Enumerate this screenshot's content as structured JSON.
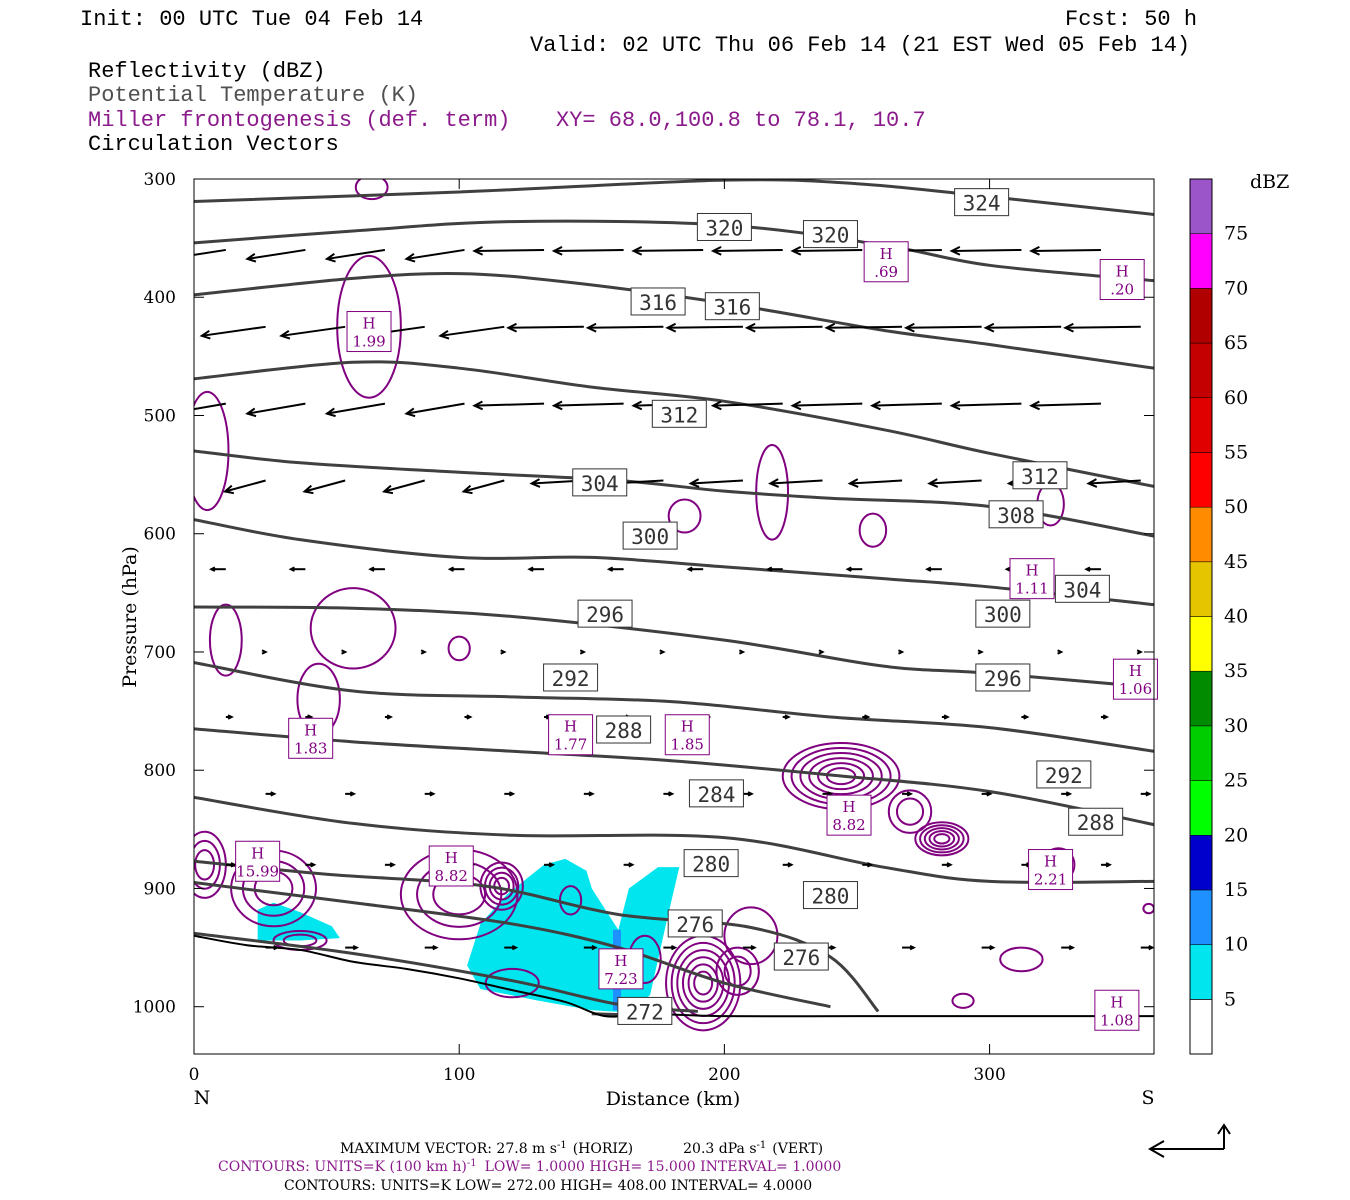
{
  "header": {
    "init": "Init: 00 UTC Tue 04 Feb 14",
    "fcst": "Fcst:   50 h",
    "valid": "Valid: 02 UTC Thu 06 Feb 14 (21 EST Wed 05 Feb 14)"
  },
  "legend_lines": [
    {
      "text": "Reflectivity (dBZ)",
      "color": "#000000"
    },
    {
      "text": "Potential Temperature (K)",
      "color": "#505050"
    },
    {
      "text": "Miller frontogenesis (def. term)",
      "color": "#8b1a8b"
    },
    {
      "text": "Circulation Vectors",
      "color": "#000000"
    }
  ],
  "xy_label": "XY=  68.0,100.8 to  78.1, 10.7",
  "colors": {
    "theta": "#404040",
    "fronto": "#800080",
    "refl_5": "#00e5ee",
    "refl_10": "#1e90ff",
    "vector": "#000000"
  },
  "footer": {
    "max_prefix": "MAXIMUM VECTOR:  27.8 m s",
    "max_horiz": "(HORIZ)",
    "max_vert": "20.3 dPa s",
    "max_vert_suffix": "(VERT)",
    "line2": "CONTOURS:  UNITS=K (100 km h)",
    "line2b": "LOW=   1.0000       HIGH=  15.000       INTERVAL=    1.0000",
    "line3": "CONTOURS:  UNITS=K  LOW=   272.00       HIGH=   408.00       INTERVAL=     4.0000"
  },
  "chart_data": {
    "type": "cross-section",
    "xlabel": "Distance (km)",
    "ylabel": "Pressure (hPa)",
    "xlim": [
      0,
      362
    ],
    "ylim": [
      1040,
      300
    ],
    "x_ticks": [
      0,
      100,
      200,
      300
    ],
    "y_ticks": [
      300,
      400,
      500,
      600,
      700,
      800,
      900,
      1000
    ],
    "left_label": "N",
    "right_label": "S",
    "colorbar": {
      "title": "dBZ",
      "levels": [
        5,
        10,
        15,
        20,
        25,
        30,
        35,
        40,
        45,
        50,
        55,
        60,
        65,
        70,
        75
      ],
      "colors": [
        "#00e5ee",
        "#1e90ff",
        "#0000cd",
        "#00ff00",
        "#00cd00",
        "#008b00",
        "#ffff00",
        "#e5c400",
        "#ff8c00",
        "#ff0000",
        "#e00000",
        "#c40000",
        "#b00000",
        "#ff00ff",
        "#9b55c8"
      ]
    },
    "terrain": [
      [
        0,
        940
      ],
      [
        20,
        948
      ],
      [
        40,
        952
      ],
      [
        60,
        962
      ],
      [
        80,
        968
      ],
      [
        100,
        976
      ],
      [
        120,
        986
      ],
      [
        140,
        996
      ],
      [
        155,
        1008
      ],
      [
        170,
        1006
      ],
      [
        200,
        1008
      ],
      [
        250,
        1008
      ],
      [
        300,
        1008
      ],
      [
        362,
        1008
      ]
    ],
    "theta_contours": [
      {
        "value": 324,
        "labels": [
          [
            297,
            320
          ]
        ],
        "points": [
          [
            0,
            319
          ],
          [
            100,
            311
          ],
          [
            200,
            301
          ],
          [
            250,
            304
          ],
          [
            300,
            315
          ],
          [
            362,
            330
          ]
        ]
      },
      {
        "value": 320,
        "labels": [
          [
            200,
            341
          ],
          [
            240,
            347
          ]
        ],
        "points": [
          [
            0,
            354
          ],
          [
            60,
            344
          ],
          [
            120,
            336
          ],
          [
            200,
            339
          ],
          [
            260,
            356
          ],
          [
            300,
            373
          ],
          [
            362,
            386
          ]
        ]
      },
      {
        "value": 316,
        "labels": [
          [
            175,
            404
          ],
          [
            203,
            408
          ]
        ],
        "points": [
          [
            0,
            398
          ],
          [
            60,
            384
          ],
          [
            100,
            380
          ],
          [
            140,
            387
          ],
          [
            200,
            405
          ],
          [
            260,
            428
          ],
          [
            300,
            440
          ],
          [
            362,
            460
          ]
        ]
      },
      {
        "value": 312,
        "labels": [
          [
            183,
            499
          ],
          [
            319,
            551
          ]
        ],
        "points": [
          [
            0,
            469
          ],
          [
            60,
            455
          ],
          [
            100,
            460
          ],
          [
            150,
            476
          ],
          [
            200,
            488
          ],
          [
            260,
            512
          ],
          [
            300,
            532
          ],
          [
            362,
            560
          ]
        ]
      },
      {
        "value": 308,
        "labels": [
          [
            310,
            584
          ]
        ],
        "points": [
          [
            0,
            530
          ],
          [
            40,
            540
          ],
          [
            100,
            548
          ],
          [
            160,
            555
          ],
          [
            200,
            564
          ],
          [
            240,
            570
          ],
          [
            300,
            577
          ],
          [
            362,
            602
          ]
        ]
      },
      {
        "value": 304,
        "labels": [
          [
            153,
            557
          ],
          [
            335,
            647
          ]
        ],
        "points": [
          [
            0,
            588
          ],
          [
            40,
            605
          ],
          [
            100,
            620
          ],
          [
            150,
            620
          ],
          [
            200,
            628
          ],
          [
            260,
            638
          ],
          [
            300,
            645
          ],
          [
            362,
            660
          ]
        ]
      },
      {
        "value": 300,
        "labels": [
          [
            172,
            602
          ],
          [
            305,
            668
          ]
        ],
        "points": [
          [
            0,
            662
          ],
          [
            60,
            663
          ],
          [
            120,
            670
          ],
          [
            200,
            690
          ],
          [
            260,
            712
          ],
          [
            300,
            718
          ],
          [
            362,
            730
          ]
        ]
      },
      {
        "value": 296,
        "labels": [
          [
            155,
            668
          ],
          [
            305,
            722
          ]
        ],
        "points": [
          [
            0,
            709
          ],
          [
            60,
            733
          ],
          [
            120,
            738
          ],
          [
            180,
            742
          ],
          [
            240,
            755
          ],
          [
            300,
            764
          ],
          [
            362,
            784
          ]
        ]
      },
      {
        "value": 292,
        "labels": [
          [
            142,
            722
          ],
          [
            328,
            804
          ]
        ],
        "points": [
          [
            0,
            765
          ],
          [
            60,
            776
          ],
          [
            120,
            784
          ],
          [
            180,
            792
          ],
          [
            240,
            804
          ],
          [
            300,
            818
          ],
          [
            362,
            846
          ]
        ]
      },
      {
        "value": 288,
        "labels": [
          [
            162,
            766
          ],
          [
            340,
            844
          ]
        ],
        "points": [
          [
            0,
            823
          ],
          [
            60,
            845
          ],
          [
            120,
            855
          ],
          [
            200,
            857
          ],
          [
            260,
            882
          ],
          [
            300,
            894
          ],
          [
            362,
            894
          ]
        ]
      },
      {
        "value": 284,
        "labels": [
          [
            197,
            820
          ]
        ],
        "points": [
          [
            0,
            877
          ],
          [
            50,
            888
          ],
          [
            110,
            898
          ],
          [
            160,
            922
          ],
          [
            210,
            933
          ],
          [
            240,
            958
          ],
          [
            258,
            1004
          ]
        ]
      },
      {
        "value": 280,
        "labels": [
          [
            195,
            879
          ],
          [
            240,
            906
          ]
        ],
        "points": [
          [
            0,
            895
          ],
          [
            60,
            912
          ],
          [
            120,
            930
          ],
          [
            160,
            950
          ],
          [
            200,
            980
          ],
          [
            240,
            1000
          ]
        ]
      },
      {
        "value": 276,
        "labels": [
          [
            189,
            930
          ],
          [
            229,
            958
          ]
        ],
        "points": [
          [
            0,
            938
          ],
          [
            60,
            955
          ],
          [
            120,
            978
          ],
          [
            160,
            998
          ],
          [
            190,
            1004
          ]
        ]
      },
      {
        "value": 272,
        "labels": [
          [
            170,
            1004
          ]
        ],
        "points": [
          [
            150,
            1006
          ],
          [
            180,
            1008
          ]
        ]
      }
    ],
    "fronto_maxima": [
      {
        "x": 66,
        "p": 429,
        "value": "1.99"
      },
      {
        "x": 261,
        "p": 370,
        "value": ".69"
      },
      {
        "x": 350,
        "p": 385,
        "value": ".20"
      },
      {
        "x": 316,
        "p": 638,
        "value": "1.11"
      },
      {
        "x": 355,
        "p": 723,
        "value": "1.06"
      },
      {
        "x": 44,
        "p": 773,
        "value": "1.83"
      },
      {
        "x": 142,
        "p": 770,
        "value": "1.77"
      },
      {
        "x": 186,
        "p": 770,
        "value": "1.85"
      },
      {
        "x": 247,
        "p": 838,
        "value": "8.82"
      },
      {
        "x": 323,
        "p": 884,
        "value": "2.21"
      },
      {
        "x": 24,
        "p": 877,
        "value": "15.99"
      },
      {
        "x": 97,
        "p": 881,
        "value": "8.82"
      },
      {
        "x": 161,
        "p": 968,
        "value": "7.23"
      },
      {
        "x": 348,
        "p": 1003,
        "value": "1.08"
      }
    ]
  }
}
